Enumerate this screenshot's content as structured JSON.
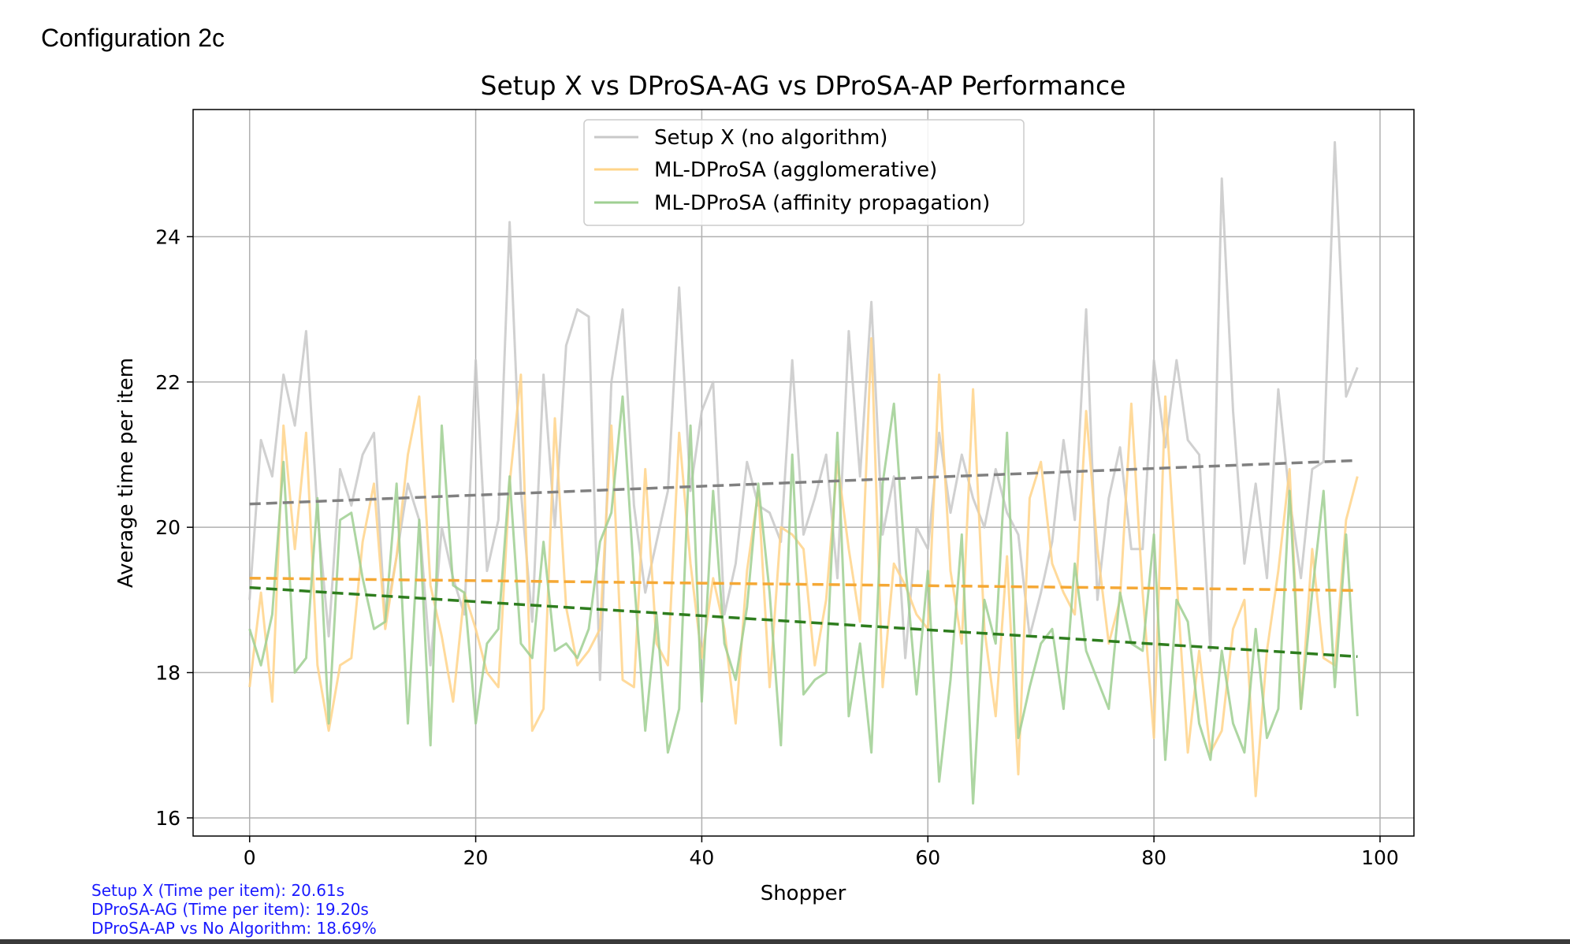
{
  "header": {
    "config_label": "Configuration 2c"
  },
  "stats": {
    "line1": "Setup X (Time per item): 20.61s",
    "line2": "DProSA-AG (Time per item): 19.20s",
    "line3": "DProSA-AP vs No Algorithm: 18.69%",
    "color": "#1a1aff"
  },
  "chart_data": {
    "type": "line",
    "title": "Setup X vs DProSA-AG vs DProSA-AP Performance",
    "xlabel": "Shopper",
    "ylabel": "Average time per item",
    "xlim": [
      -5,
      103
    ],
    "ylim": [
      15.75,
      25.75
    ],
    "xticks": [
      0,
      20,
      40,
      60,
      80,
      100
    ],
    "yticks": [
      16,
      18,
      20,
      22,
      24
    ],
    "grid": true,
    "legend_position": "top-center",
    "series": [
      {
        "name": "Setup X (no algorithm)",
        "color": "#c8c8c8",
        "values": [
          19.0,
          21.2,
          20.7,
          22.1,
          21.4,
          22.7,
          20.2,
          18.5,
          20.8,
          20.3,
          21.0,
          21.3,
          18.7,
          19.6,
          20.6,
          20.1,
          18.1,
          20.0,
          19.3,
          18.8,
          22.3,
          19.4,
          20.1,
          24.2,
          20.5,
          18.7,
          22.1,
          20.0,
          22.5,
          23.0,
          22.9,
          17.9,
          22.0,
          23.0,
          20.3,
          19.1,
          19.8,
          20.5,
          23.3,
          20.5,
          21.6,
          22.0,
          18.8,
          19.5,
          20.9,
          20.3,
          20.2,
          19.8,
          22.3,
          19.9,
          20.4,
          21.0,
          19.3,
          22.7,
          20.7,
          23.1,
          19.9,
          20.7,
          18.2,
          20.0,
          19.7,
          21.3,
          20.2,
          21.0,
          20.4,
          20.0,
          20.8,
          20.2,
          19.9,
          18.5,
          19.1,
          19.8,
          21.2,
          20.1,
          23.0,
          19.0,
          20.4,
          21.1,
          19.7,
          19.7,
          22.3,
          21.1,
          22.3,
          21.2,
          21.0,
          18.3,
          24.8,
          21.6,
          19.5,
          20.6,
          19.3,
          21.9,
          20.4,
          19.3,
          20.8,
          20.9,
          25.3,
          21.8,
          22.2
        ]
      },
      {
        "name": "ML-DProSA (agglomerative)",
        "color": "#ffd48a",
        "values": [
          17.8,
          19.1,
          17.6,
          21.4,
          19.7,
          21.3,
          18.1,
          17.2,
          18.1,
          18.2,
          19.8,
          20.6,
          18.6,
          19.6,
          21.0,
          21.8,
          19.2,
          18.5,
          17.6,
          19.1,
          18.6,
          18.0,
          17.8,
          20.6,
          22.1,
          17.2,
          17.5,
          21.5,
          18.9,
          18.1,
          18.3,
          18.6,
          21.4,
          17.9,
          17.8,
          20.8,
          18.4,
          18.1,
          21.3,
          19.5,
          18.2,
          19.3,
          18.6,
          17.3,
          19.4,
          20.5,
          17.8,
          20.0,
          19.9,
          19.7,
          18.1,
          19.0,
          20.9,
          19.7,
          18.7,
          22.6,
          17.8,
          19.5,
          19.2,
          18.8,
          18.6,
          22.1,
          19.4,
          18.4,
          21.9,
          18.6,
          17.4,
          19.6,
          16.6,
          20.4,
          20.9,
          19.5,
          19.1,
          18.8,
          21.6,
          19.7,
          18.4,
          19.0,
          21.7,
          19.1,
          17.1,
          21.8,
          19.3,
          16.9,
          18.3,
          16.9,
          17.2,
          18.6,
          19.0,
          16.3,
          18.3,
          19.4,
          20.8,
          17.5,
          19.7,
          18.2,
          18.1,
          20.1,
          20.7
        ]
      },
      {
        "name": "ML-DProSA (affinity propagation)",
        "color": "#9fcf92",
        "values": [
          18.6,
          18.1,
          18.8,
          20.9,
          18.0,
          18.2,
          20.4,
          17.3,
          20.1,
          20.2,
          19.3,
          18.6,
          18.7,
          20.6,
          17.3,
          20.1,
          17.0,
          21.4,
          19.2,
          19.1,
          17.3,
          18.4,
          18.6,
          20.7,
          18.4,
          18.2,
          19.8,
          18.3,
          18.4,
          18.2,
          18.6,
          19.8,
          20.2,
          21.8,
          19.3,
          17.2,
          18.8,
          16.9,
          17.5,
          21.4,
          17.6,
          20.5,
          18.4,
          17.9,
          18.9,
          20.6,
          19.1,
          17.0,
          21.0,
          17.7,
          17.9,
          18.0,
          21.3,
          17.4,
          18.4,
          16.9,
          20.6,
          21.7,
          19.5,
          17.7,
          19.4,
          16.5,
          17.9,
          19.9,
          16.2,
          19.0,
          18.4,
          21.3,
          17.1,
          17.8,
          18.4,
          18.6,
          17.5,
          19.5,
          18.3,
          17.9,
          17.5,
          19.1,
          18.4,
          18.3,
          19.9,
          16.8,
          19.0,
          18.7,
          17.3,
          16.8,
          18.3,
          17.3,
          16.9,
          18.6,
          17.1,
          17.5,
          20.5,
          17.5,
          19.1,
          20.5,
          17.8,
          19.9,
          17.4
        ]
      }
    ],
    "trendlines": [
      {
        "color": "#808080",
        "x": [
          0,
          98
        ],
        "y": [
          20.32,
          20.92
        ]
      },
      {
        "color": "#f5a835",
        "x": [
          0,
          98
        ],
        "y": [
          19.3,
          19.13
        ]
      },
      {
        "color": "#2e7d1e",
        "x": [
          0,
          98
        ],
        "y": [
          19.17,
          18.22
        ]
      }
    ]
  }
}
